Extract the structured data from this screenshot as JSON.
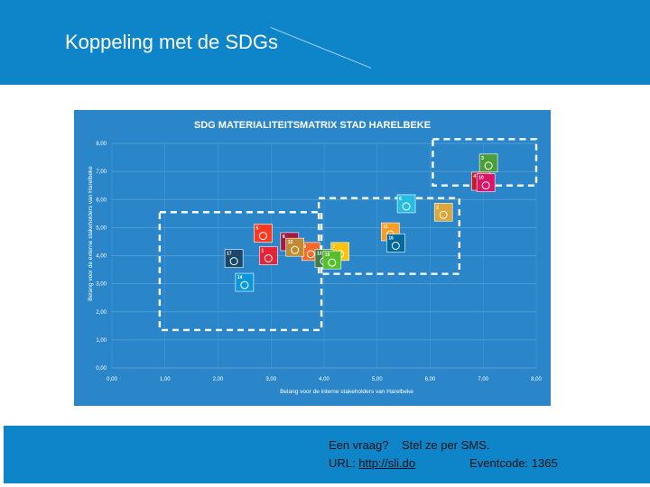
{
  "slide": {
    "title": "Koppeling met de SDGs"
  },
  "colors": {
    "header": "#0f85c9",
    "chart_bg": "#2a86c8",
    "dashed_box": "#ffffff"
  },
  "chart_data": {
    "type": "scatter",
    "title": "SDG MATERIALITEITSMATRIX STAD HARELBEKE",
    "xlabel": "Belang voor de interne stakeholders van Harelbeke",
    "ylabel": "Belang voor de externe stakeholders van Harelbeke",
    "xlim": [
      0,
      8
    ],
    "ylim": [
      0,
      8
    ],
    "x_ticks": [
      "0,00",
      "1,00",
      "2,00",
      "3,00",
      "4,00",
      "5,00",
      "6,00",
      "7,00",
      "8,00"
    ],
    "y_ticks": [
      "0,00",
      "1,00",
      "2,00",
      "3,00",
      "4,00",
      "5,00",
      "6,00",
      "7,00",
      "8,00"
    ],
    "grid": true,
    "points": [
      {
        "sdg": 1,
        "x": 2.95,
        "y": 4.0,
        "color": "#e5243b"
      },
      {
        "sdg": 2,
        "x": 6.25,
        "y": 5.55,
        "color": "#dda63a"
      },
      {
        "sdg": 3,
        "x": 7.1,
        "y": 7.3,
        "color": "#4c9f38"
      },
      {
        "sdg": 4,
        "x": 6.95,
        "y": 6.65,
        "color": "#c5192d"
      },
      {
        "sdg": 5,
        "x": 2.85,
        "y": 4.8,
        "color": "#ff3a21"
      },
      {
        "sdg": 6,
        "x": 5.55,
        "y": 5.85,
        "color": "#26bde2"
      },
      {
        "sdg": 7,
        "x": 4.3,
        "y": 4.15,
        "color": "#fcc30b"
      },
      {
        "sdg": 8,
        "x": 3.35,
        "y": 4.5,
        "color": "#a21942"
      },
      {
        "sdg": 9,
        "x": 3.75,
        "y": 4.15,
        "color": "#fd6925"
      },
      {
        "sdg": 10,
        "x": 7.05,
        "y": 6.6,
        "color": "#dd1367"
      },
      {
        "sdg": 11,
        "x": 5.25,
        "y": 4.85,
        "color": "#fd9d24"
      },
      {
        "sdg": 12,
        "x": 3.45,
        "y": 4.3,
        "color": "#bf8b2e"
      },
      {
        "sdg": 13,
        "x": 4.0,
        "y": 3.9,
        "color": "#3f7e44"
      },
      {
        "sdg": 14,
        "x": 2.5,
        "y": 3.05,
        "color": "#0a97d9"
      },
      {
        "sdg": 15,
        "x": 4.15,
        "y": 3.85,
        "color": "#56c02b"
      },
      {
        "sdg": 16,
        "x": 5.35,
        "y": 4.45,
        "color": "#00689d"
      },
      {
        "sdg": 17,
        "x": 2.3,
        "y": 3.9,
        "color": "#19486a"
      }
    ],
    "regions": [
      {
        "x0": 0.9,
        "y0": 1.35,
        "x1": 3.95,
        "y1": 5.55
      },
      {
        "x0": 3.9,
        "y0": 3.35,
        "x1": 6.55,
        "y1": 6.05
      },
      {
        "x0": 6.05,
        "y0": 6.5,
        "x1": 8.0,
        "y1": 8.15
      }
    ]
  },
  "footer": {
    "question": "Een vraag?    Stel ze per SMS.",
    "url_label": "URL:",
    "url": "http://sli.do",
    "event_code": "Eventcode: 1365"
  }
}
